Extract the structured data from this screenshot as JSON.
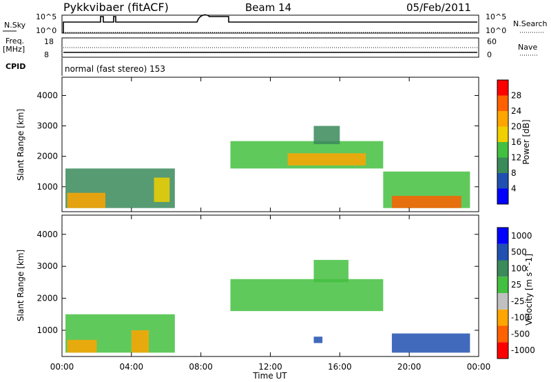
{
  "header": {
    "title": "Pykkvibaer (fitACF)",
    "beam": "Beam 14",
    "date": "05/Feb/2011"
  },
  "top_panels": {
    "nsky_label": "N.Sky",
    "nsky_ticks": [
      "10^5",
      "10^0"
    ],
    "nsearch_label": "N.Search",
    "nsearch_ticks": [
      "10^5",
      "10^0"
    ],
    "freq_label": "Freq.",
    "freq_unit": "[MHz]",
    "freq_ticks": [
      "18",
      "8"
    ],
    "nave_label": "Nave",
    "nave_ticks": [
      "60",
      "0"
    ],
    "cpid_label": "CPID",
    "cpid_text": "normal (fast stereo) 153"
  },
  "colors": {
    "power_scale": [
      "#0000ff",
      "#2050b0",
      "#3a8a5a",
      "#44c040",
      "#f0d000",
      "#ffa500",
      "#ff6000",
      "#ff0000"
    ],
    "velocity_scale": [
      "#ff0000",
      "#ff6000",
      "#ffa500",
      "#c0c0c0",
      "#44c040",
      "#3a8a5a",
      "#2050b0",
      "#0000ff"
    ],
    "ground_scatter": "#c0c0c0"
  },
  "chart_data": [
    {
      "type": "heatmap",
      "title": "",
      "ylabel": "Slant Range [km]",
      "xlabel": "",
      "x_ticks": [
        "00:00",
        "04:00",
        "08:00",
        "12:00",
        "16:00",
        "20:00",
        "00:00"
      ],
      "y_ticks": [
        "1000",
        "2000",
        "3000",
        "4000"
      ],
      "xlim_hours": [
        0,
        24
      ],
      "ylim_km": [
        180,
        4600
      ],
      "colorbar": {
        "label": "Power [dB]",
        "ticks": [
          "28",
          "24",
          "20",
          "16",
          "12",
          "8",
          "4"
        ],
        "range": [
          0,
          32
        ]
      },
      "regions": [
        {
          "t0": 0.2,
          "t1": 6.5,
          "r0": 300,
          "r1": 1600,
          "value": 9
        },
        {
          "t0": 0.3,
          "t1": 2.5,
          "r0": 300,
          "r1": 800,
          "value": 22
        },
        {
          "t0": 5.3,
          "t1": 6.2,
          "r0": 500,
          "r1": 1300,
          "value": 18
        },
        {
          "t0": 9.7,
          "t1": 18.5,
          "r0": 1600,
          "r1": 2500,
          "value": 13
        },
        {
          "t0": 13.0,
          "t1": 17.5,
          "r0": 1700,
          "r1": 2100,
          "value": 20
        },
        {
          "t0": 14.5,
          "t1": 16.0,
          "r0": 2400,
          "r1": 3000,
          "value": 10
        },
        {
          "t0": 18.5,
          "t1": 23.5,
          "r0": 300,
          "r1": 1500,
          "value": 14
        },
        {
          "t0": 19.0,
          "t1": 23.0,
          "r0": 300,
          "r1": 700,
          "value": 27
        }
      ]
    },
    {
      "type": "heatmap",
      "title": "",
      "ylabel": "Slant Range [km]",
      "xlabel": "Time UT",
      "x_ticks": [
        "00:00",
        "04:00",
        "08:00",
        "12:00",
        "16:00",
        "20:00",
        "00:00"
      ],
      "y_ticks": [
        "1000",
        "2000",
        "3000",
        "4000"
      ],
      "xlim_hours": [
        0,
        24
      ],
      "ylim_km": [
        180,
        4600
      ],
      "colorbar": {
        "label": "Velocity [m s^-1]",
        "ticks": [
          "1000",
          "500",
          "100",
          "25",
          "-25",
          "-100",
          "-500",
          "-1000"
        ]
      },
      "regions": [
        {
          "t0": 0.2,
          "t1": 6.5,
          "r0": 300,
          "r1": 1500,
          "value": 0
        },
        {
          "t0": 0.3,
          "t1": 2.0,
          "r0": 300,
          "r1": 700,
          "value": -300
        },
        {
          "t0": 4.0,
          "t1": 5.0,
          "r0": 300,
          "r1": 1000,
          "value": -300
        },
        {
          "t0": 9.7,
          "t1": 18.5,
          "r0": 1600,
          "r1": 2600,
          "value": 0
        },
        {
          "t0": 14.5,
          "t1": 16.5,
          "r0": 2500,
          "r1": 3200,
          "value": 0
        },
        {
          "t0": 14.5,
          "t1": 15.0,
          "r0": 600,
          "r1": 800,
          "value": 200
        },
        {
          "t0": 19.0,
          "t1": 23.5,
          "r0": 300,
          "r1": 900,
          "value": 200
        }
      ]
    }
  ]
}
